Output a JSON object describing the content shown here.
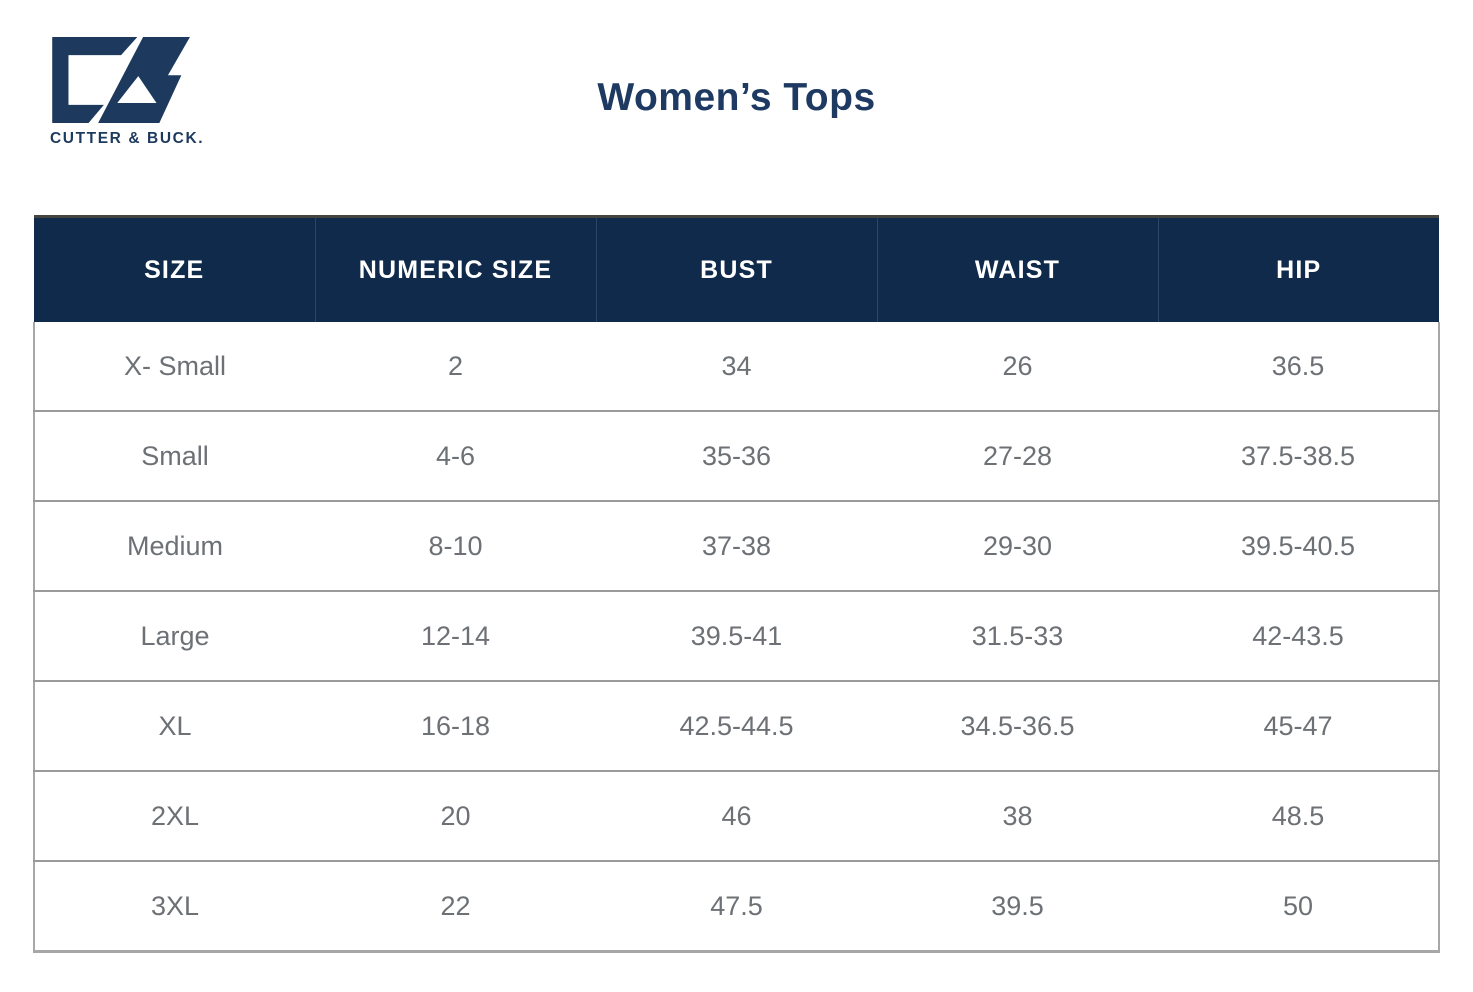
{
  "brand": {
    "wordmark": "CUTTER & BUCK.",
    "monogram": "cb-monogram-icon",
    "logo_color": "#1d3a5e"
  },
  "title": "Women’s Tops",
  "colors": {
    "header_bg": "#102a4b",
    "header_text": "#ffffff",
    "title_color": "#1e3a62",
    "body_text": "#6d7175",
    "row_border": "#989a9c",
    "table_top_border": "#45443f"
  },
  "table": {
    "headers": [
      "SIZE",
      "NUMERIC SIZE",
      "BUST",
      "WAIST",
      "HIP"
    ],
    "rows": [
      [
        "X- Small",
        "2",
        "34",
        "26",
        "36.5"
      ],
      [
        "Small",
        "4-6",
        "35-36",
        "27-28",
        "37.5-38.5"
      ],
      [
        "Medium",
        "8-10",
        "37-38",
        "29-30",
        "39.5-40.5"
      ],
      [
        "Large",
        "12-14",
        "39.5-41",
        "31.5-33",
        "42-43.5"
      ],
      [
        "XL",
        "16-18",
        "42.5-44.5",
        "34.5-36.5",
        "45-47"
      ],
      [
        "2XL",
        "20",
        "46",
        "38",
        "48.5"
      ],
      [
        "3XL",
        "22",
        "47.5",
        "39.5",
        "50"
      ]
    ]
  }
}
